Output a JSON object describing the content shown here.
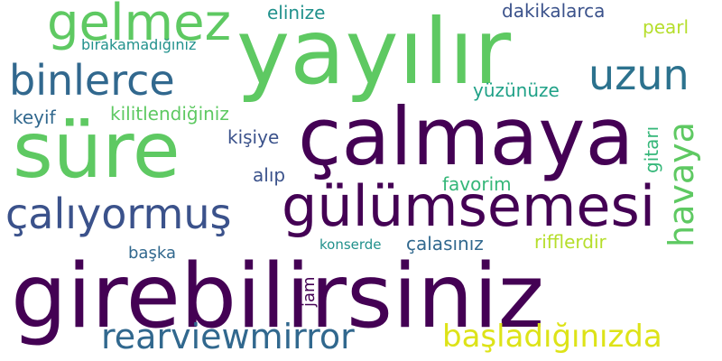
{
  "palette": {
    "dark_purple": "#440154",
    "indigo": "#3b528b",
    "steel_blue": "#31688e",
    "blue_teal": "#2c728e",
    "teal": "#21918c",
    "sea_green": "#1fa187",
    "green": "#35b779",
    "light_green": "#5ec962",
    "yellow_green": "#b5de2b",
    "yellow": "#dde318",
    "violet": "#482878"
  },
  "words": {
    "yayilir": "yayılır",
    "gelmez": "gelmez",
    "elinize": "elinize",
    "dakikalarca": "dakikalarca",
    "pearl": "pearl",
    "birakamadiginiz": "bırakamadığınız",
    "binlerce": "binlerce",
    "uzun": "uzun",
    "yuzunuze": "yüzünüze",
    "keyif": "keyif",
    "kilitlendiginiz": "kilitlendiğiniz",
    "sure": "süre",
    "calmaya": "çalmaya",
    "kisiye": "kişiye",
    "havaya": "havaya",
    "gitari": "gitarı",
    "alip": "alıp",
    "favorim": "favorim",
    "caliyormus": "çalıyormuş",
    "gulumsemesi": "gülümsemesi",
    "baska": "başka",
    "konserde": "konserde",
    "calasiniz": "çalasınız",
    "rifflerdir": "rifflerdir",
    "girebilirsiniz": "girebilirsiniz",
    "jam": "jam",
    "rearviewmirror": "rearviewmirror",
    "basladiginizda": "başladığınızda"
  }
}
